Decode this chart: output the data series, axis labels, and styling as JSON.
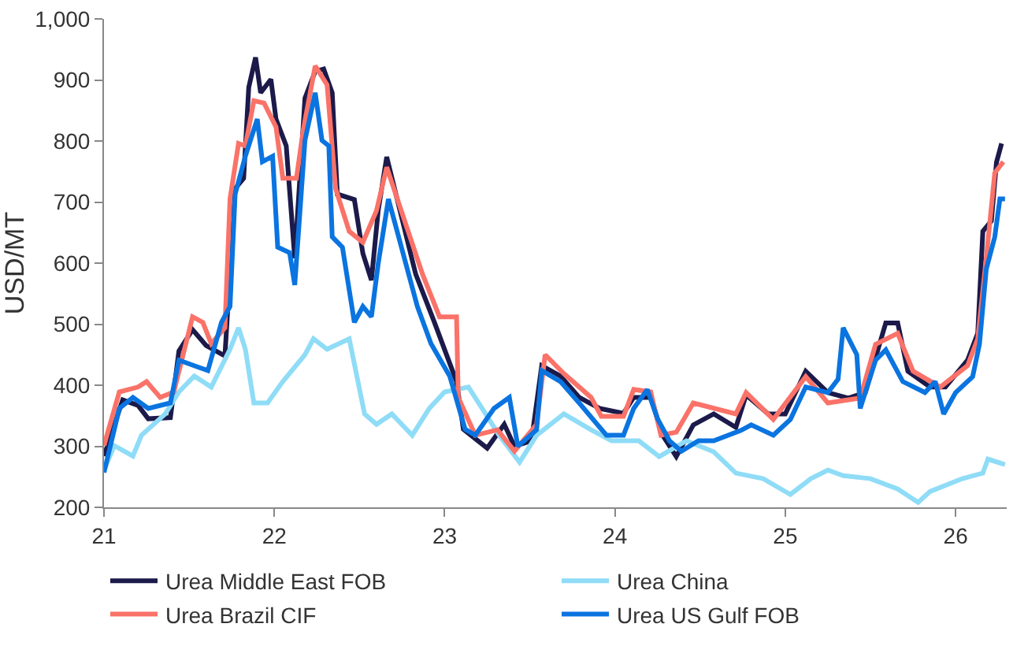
{
  "chart_data": {
    "type": "line",
    "ylabel": "USD/MT",
    "xlim": [
      21,
      26.3
    ],
    "xticks": [
      21,
      22,
      23,
      24,
      25,
      26
    ],
    "ylim": [
      200,
      1000
    ],
    "yticks": [
      200,
      300,
      400,
      500,
      600,
      700,
      800,
      900,
      {
        "value": 1000,
        "label": "1,000"
      }
    ],
    "legend": "bottom",
    "marker": "none",
    "line_style": "solid",
    "series": [
      {
        "name": "Urea Middle East FOB",
        "color": "#1b1a4a",
        "x": [
          21.0,
          21.11,
          21.2,
          21.26,
          21.39,
          21.44,
          21.52,
          21.6,
          21.71,
          21.77,
          21.82,
          21.85,
          21.89,
          21.92,
          21.98,
          22.01,
          22.07,
          22.12,
          22.18,
          22.24,
          22.29,
          22.34,
          22.37,
          22.47,
          22.52,
          22.57,
          22.61,
          22.66,
          22.83,
          22.94,
          23.07,
          23.11,
          23.25,
          23.35,
          23.41,
          23.51,
          23.57,
          23.68,
          23.79,
          23.91,
          24.05,
          24.11,
          24.21,
          24.28,
          24.36,
          24.46,
          24.58,
          24.71,
          24.77,
          24.9,
          25.0,
          25.12,
          25.25,
          25.37,
          25.47,
          25.59,
          25.66,
          25.72,
          25.85,
          25.94,
          26.07,
          26.13,
          26.16,
          26.21,
          26.24,
          26.27
        ],
        "values": [
          284,
          376,
          367,
          345,
          347,
          456,
          491,
          465,
          448,
          722,
          739,
          888,
          937,
          879,
          901,
          836,
          792,
          608,
          870,
          914,
          918,
          879,
          713,
          704,
          616,
          572,
          686,
          774,
          582,
          503,
          406,
          328,
          297,
          336,
          300,
          309,
          432,
          415,
          380,
          362,
          354,
          380,
          380,
          318,
          283,
          335,
          353,
          331,
          384,
          353,
          353,
          423,
          388,
          379,
          388,
          502,
          502,
          423,
          397,
          397,
          441,
          485,
          652,
          669,
          765,
          796
        ]
      },
      {
        "name": "Urea China",
        "color": "#8fdcf7",
        "x": [
          21.0,
          21.06,
          21.17,
          21.22,
          21.36,
          21.44,
          21.53,
          21.63,
          21.74,
          21.79,
          21.83,
          21.88,
          21.96,
          22.05,
          22.18,
          22.23,
          22.31,
          22.44,
          22.53,
          22.6,
          22.69,
          22.81,
          22.91,
          23.0,
          23.14,
          23.22,
          23.32,
          23.44,
          23.54,
          23.7,
          23.86,
          23.98,
          24.14,
          24.26,
          24.42,
          24.58,
          24.71,
          24.87,
          25.03,
          25.15,
          25.25,
          25.34,
          25.5,
          25.66,
          25.78,
          25.85,
          26.04,
          26.16,
          26.19,
          26.29
        ],
        "values": [
          261,
          301,
          284,
          318,
          353,
          389,
          415,
          397,
          459,
          494,
          459,
          371,
          371,
          406,
          450,
          476,
          459,
          476,
          353,
          336,
          353,
          318,
          362,
          389,
          397,
          362,
          318,
          274,
          318,
          353,
          327,
          309,
          309,
          283,
          309,
          291,
          256,
          247,
          221,
          247,
          261,
          252,
          247,
          230,
          208,
          226,
          247,
          256,
          279,
          270
        ]
      },
      {
        "name": "Urea Brazil CIF",
        "color": "#fa7268",
        "x": [
          21.0,
          21.09,
          21.2,
          21.25,
          21.33,
          21.41,
          21.52,
          21.58,
          21.63,
          21.71,
          21.74,
          21.79,
          21.83,
          21.88,
          21.94,
          22.01,
          22.05,
          22.13,
          22.17,
          22.24,
          22.31,
          22.36,
          22.44,
          22.52,
          22.6,
          22.66,
          22.87,
          22.97,
          23.07,
          23.08,
          23.18,
          23.31,
          23.41,
          23.54,
          23.59,
          23.7,
          23.86,
          23.92,
          24.05,
          24.11,
          24.21,
          24.27,
          24.36,
          24.46,
          24.71,
          24.77,
          24.93,
          25.12,
          25.25,
          25.44,
          25.53,
          25.66,
          25.75,
          25.91,
          26.07,
          26.13,
          26.18,
          26.23,
          26.28
        ],
        "values": [
          301,
          389,
          397,
          406,
          380,
          389,
          512,
          503,
          468,
          494,
          705,
          796,
          792,
          866,
          862,
          823,
          739,
          739,
          818,
          923,
          892,
          722,
          652,
          634,
          686,
          757,
          582,
          512,
          512,
          380,
          318,
          327,
          292,
          336,
          450,
          419,
          380,
          349,
          349,
          393,
          389,
          318,
          323,
          371,
          353,
          388,
          344,
          414,
          371,
          379,
          467,
          485,
          423,
          397,
          432,
          476,
          608,
          748,
          766
        ]
      },
      {
        "name": "Urea US Gulf FOB",
        "color": "#0a74e0",
        "x": [
          21.0,
          21.09,
          21.17,
          21.26,
          21.39,
          21.44,
          21.61,
          21.69,
          21.74,
          21.77,
          21.83,
          21.9,
          21.93,
          21.99,
          22.02,
          22.09,
          22.12,
          22.18,
          22.24,
          22.28,
          22.32,
          22.34,
          22.4,
          22.47,
          22.52,
          22.57,
          22.61,
          22.67,
          22.84,
          22.92,
          23.03,
          23.12,
          23.18,
          23.29,
          23.38,
          23.43,
          23.54,
          23.57,
          23.68,
          23.79,
          23.95,
          24.05,
          24.11,
          24.19,
          24.25,
          24.32,
          24.39,
          24.49,
          24.58,
          24.74,
          24.8,
          24.93,
          25.03,
          25.12,
          25.25,
          25.31,
          25.34,
          25.42,
          25.44,
          25.53,
          25.59,
          25.69,
          25.82,
          25.88,
          25.93,
          26.0,
          26.1,
          26.14,
          26.18,
          26.23,
          26.26,
          26.29
        ],
        "values": [
          257,
          362,
          380,
          362,
          371,
          441,
          424,
          503,
          529,
          713,
          775,
          836,
          766,
          775,
          626,
          617,
          564,
          801,
          879,
          801,
          792,
          643,
          626,
          503,
          529,
          512,
          599,
          705,
          529,
          468,
          415,
          328,
          318,
          362,
          380,
          300,
          327,
          424,
          406,
          371,
          318,
          318,
          362,
          393,
          345,
          309,
          292,
          309,
          309,
          326,
          335,
          318,
          344,
          397,
          388,
          410,
          494,
          450,
          362,
          441,
          458,
          406,
          388,
          406,
          353,
          388,
          414,
          467,
          590,
          643,
          705,
          705
        ]
      }
    ]
  }
}
